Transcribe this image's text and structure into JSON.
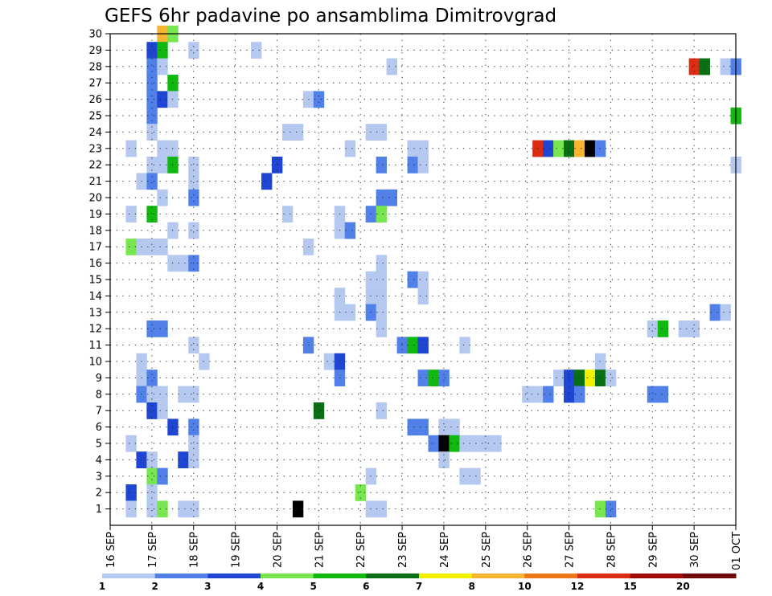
{
  "chart_data": {
    "type": "heatmap",
    "title": "GEFS 6hr padavine po ansamblima Dimitrovgrad",
    "x_tick_labels": [
      "16 SEP",
      "17 SEP",
      "18 SEP",
      "19 SEP",
      "20 SEP",
      "21 SEP",
      "22 SEP",
      "23 SEP",
      "24 SEP",
      "25 SEP",
      "26 SEP",
      "27 SEP",
      "28 SEP",
      "29 SEP",
      "30 SEP",
      "01 OCT"
    ],
    "x_range_steps": [
      0,
      60
    ],
    "steps_per_day": 4,
    "y_tick_labels": [
      "1",
      "2",
      "3",
      "4",
      "5",
      "6",
      "7",
      "8",
      "9",
      "10",
      "11",
      "12",
      "13",
      "14",
      "15",
      "16",
      "17",
      "18",
      "19",
      "20",
      "21",
      "22",
      "23",
      "24",
      "25",
      "26",
      "27",
      "28",
      "29",
      "30"
    ],
    "y_range": [
      0,
      30
    ],
    "grid": true,
    "colorbar": {
      "labels": [
        "1",
        "2",
        "3",
        "4",
        "5",
        "6",
        "7",
        "8",
        "10",
        "12",
        "15",
        "20"
      ],
      "colors": [
        "#b4c8f0",
        "#5080e8",
        "#1e46d2",
        "#78e650",
        "#10b810",
        "#0a6e14",
        "#f0f000",
        "#f5b432",
        "#f07814",
        "#dc2d14",
        "#a00a0a",
        "#6e0a0a"
      ]
    },
    "cells": [
      [
        30,
        5,
        8
      ],
      [
        30,
        6,
        4
      ],
      [
        29,
        4,
        3
      ],
      [
        29,
        5,
        5
      ],
      [
        29,
        8,
        1
      ],
      [
        29,
        14,
        1
      ],
      [
        28,
        4,
        2
      ],
      [
        28,
        5,
        1
      ],
      [
        28,
        27,
        1
      ],
      [
        28,
        56,
        10
      ],
      [
        28,
        57,
        6
      ],
      [
        28,
        59,
        1
      ],
      [
        28,
        60,
        2
      ],
      [
        27,
        4,
        2
      ],
      [
        27,
        6,
        5
      ],
      [
        26,
        4,
        2
      ],
      [
        26,
        5,
        3
      ],
      [
        26,
        6,
        1
      ],
      [
        26,
        19,
        1
      ],
      [
        26,
        20,
        2
      ],
      [
        25,
        4,
        2
      ],
      [
        25,
        60,
        5
      ],
      [
        24,
        4,
        1
      ],
      [
        24,
        17,
        1
      ],
      [
        24,
        25,
        1
      ],
      [
        24,
        26,
        1
      ],
      [
        24,
        18,
        1
      ],
      [
        23,
        2,
        1
      ],
      [
        23,
        5,
        1
      ],
      [
        23,
        6,
        1
      ],
      [
        23,
        23,
        1
      ],
      [
        23,
        29,
        1
      ],
      [
        23,
        30,
        1
      ],
      [
        23,
        41,
        10
      ],
      [
        23,
        42,
        3
      ],
      [
        23,
        43,
        4
      ],
      [
        23,
        44,
        6
      ],
      [
        23,
        45,
        8
      ],
      [
        23,
        46,
        20
      ],
      [
        23,
        47,
        2
      ],
      [
        22,
        4,
        1
      ],
      [
        22,
        5,
        1
      ],
      [
        22,
        6,
        5
      ],
      [
        22,
        8,
        1
      ],
      [
        22,
        16,
        3
      ],
      [
        22,
        26,
        2
      ],
      [
        22,
        29,
        2
      ],
      [
        22,
        30,
        1
      ],
      [
        22,
        60,
        1
      ],
      [
        21,
        3,
        1
      ],
      [
        21,
        4,
        2
      ],
      [
        21,
        8,
        1
      ],
      [
        21,
        15,
        3
      ],
      [
        20,
        5,
        1
      ],
      [
        20,
        8,
        2
      ],
      [
        20,
        26,
        2
      ],
      [
        20,
        27,
        2
      ],
      [
        19,
        2,
        1
      ],
      [
        19,
        4,
        5
      ],
      [
        19,
        17,
        1
      ],
      [
        19,
        22,
        1
      ],
      [
        19,
        25,
        2
      ],
      [
        19,
        26,
        4
      ],
      [
        18,
        6,
        1
      ],
      [
        18,
        8,
        1
      ],
      [
        18,
        22,
        1
      ],
      [
        18,
        23,
        2
      ],
      [
        17,
        2,
        4
      ],
      [
        17,
        3,
        1
      ],
      [
        17,
        4,
        1
      ],
      [
        17,
        5,
        1
      ],
      [
        17,
        19,
        1
      ],
      [
        16,
        6,
        1
      ],
      [
        16,
        7,
        1
      ],
      [
        16,
        8,
        2
      ],
      [
        16,
        26,
        1
      ],
      [
        15,
        26,
        1
      ],
      [
        15,
        25,
        1
      ],
      [
        15,
        29,
        2
      ],
      [
        15,
        30,
        1
      ],
      [
        14,
        22,
        1
      ],
      [
        14,
        25,
        1
      ],
      [
        14,
        26,
        1
      ],
      [
        14,
        30,
        1
      ],
      [
        13,
        22,
        1
      ],
      [
        13,
        23,
        1
      ],
      [
        13,
        25,
        2
      ],
      [
        13,
        26,
        1
      ],
      [
        13,
        58,
        2
      ],
      [
        13,
        59,
        1
      ],
      [
        12,
        4,
        2
      ],
      [
        12,
        5,
        2
      ],
      [
        12,
        26,
        1
      ],
      [
        12,
        52,
        1
      ],
      [
        12,
        53,
        5
      ],
      [
        12,
        55,
        1
      ],
      [
        12,
        56,
        1
      ],
      [
        11,
        8,
        1
      ],
      [
        11,
        19,
        2
      ],
      [
        11,
        28,
        2
      ],
      [
        11,
        29,
        5
      ],
      [
        11,
        30,
        3
      ],
      [
        11,
        34,
        1
      ],
      [
        10,
        3,
        1
      ],
      [
        10,
        9,
        1
      ],
      [
        10,
        21,
        1
      ],
      [
        10,
        22,
        3
      ],
      [
        10,
        47,
        1
      ],
      [
        9,
        3,
        1
      ],
      [
        9,
        4,
        2
      ],
      [
        9,
        22,
        2
      ],
      [
        9,
        30,
        2
      ],
      [
        9,
        31,
        5
      ],
      [
        9,
        32,
        2
      ],
      [
        9,
        43,
        1
      ],
      [
        9,
        44,
        3
      ],
      [
        9,
        45,
        6
      ],
      [
        9,
        46,
        7
      ],
      [
        9,
        47,
        6
      ],
      [
        9,
        48,
        1
      ],
      [
        8,
        3,
        2
      ],
      [
        8,
        4,
        1
      ],
      [
        8,
        5,
        1
      ],
      [
        8,
        7,
        1
      ],
      [
        8,
        8,
        1
      ],
      [
        8,
        40,
        1
      ],
      [
        8,
        41,
        1
      ],
      [
        8,
        42,
        2
      ],
      [
        8,
        44,
        3
      ],
      [
        8,
        45,
        2
      ],
      [
        8,
        52,
        2
      ],
      [
        8,
        53,
        2
      ],
      [
        7,
        4,
        3
      ],
      [
        7,
        5,
        1
      ],
      [
        7,
        20,
        6
      ],
      [
        7,
        26,
        1
      ],
      [
        6,
        6,
        3
      ],
      [
        6,
        8,
        2
      ],
      [
        6,
        29,
        2
      ],
      [
        6,
        30,
        2
      ],
      [
        6,
        32,
        1
      ],
      [
        6,
        33,
        1
      ],
      [
        5,
        2,
        1
      ],
      [
        5,
        8,
        1
      ],
      [
        5,
        31,
        2
      ],
      [
        5,
        32,
        20
      ],
      [
        5,
        33,
        5
      ],
      [
        5,
        34,
        1
      ],
      [
        5,
        35,
        1
      ],
      [
        5,
        36,
        1
      ],
      [
        5,
        37,
        1
      ],
      [
        4,
        3,
        3
      ],
      [
        4,
        4,
        1
      ],
      [
        4,
        7,
        3
      ],
      [
        4,
        8,
        1
      ],
      [
        4,
        32,
        1
      ],
      [
        3,
        4,
        4
      ],
      [
        3,
        5,
        2
      ],
      [
        3,
        25,
        1
      ],
      [
        3,
        34,
        1
      ],
      [
        3,
        35,
        1
      ],
      [
        2,
        2,
        3
      ],
      [
        2,
        4,
        1
      ],
      [
        2,
        24,
        4
      ],
      [
        1,
        2,
        1
      ],
      [
        1,
        4,
        1
      ],
      [
        1,
        5,
        4
      ],
      [
        1,
        7,
        1
      ],
      [
        1,
        8,
        1
      ],
      [
        1,
        18,
        15
      ],
      [
        1,
        25,
        1
      ],
      [
        1,
        26,
        1
      ],
      [
        1,
        47,
        4
      ],
      [
        1,
        48,
        2
      ]
    ]
  }
}
